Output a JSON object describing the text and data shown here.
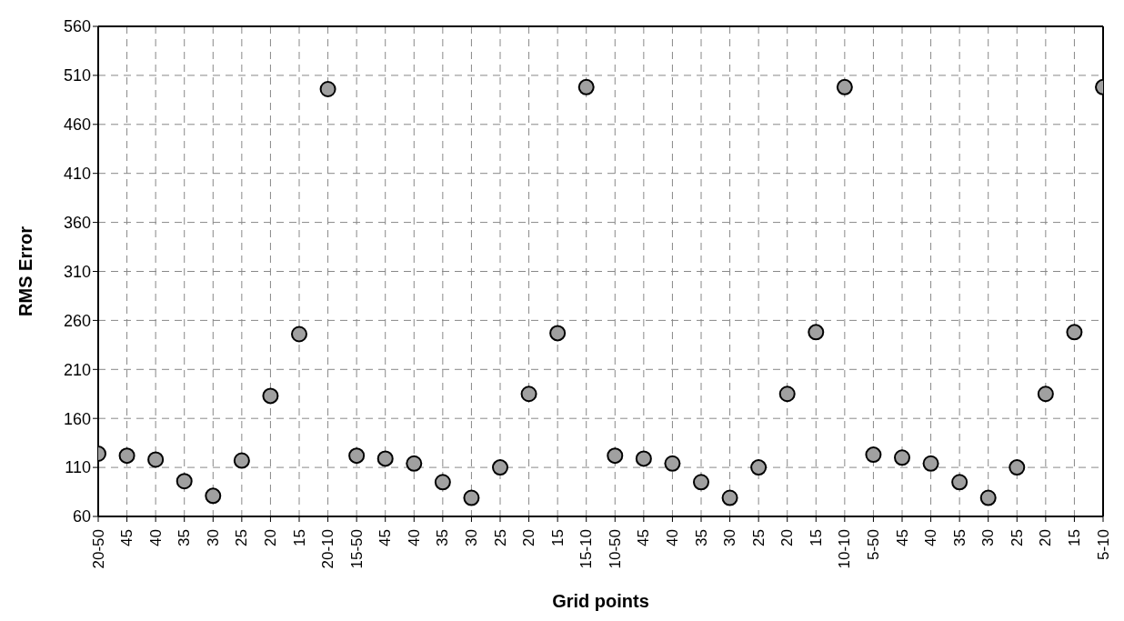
{
  "chart_data": {
    "type": "scatter",
    "xlabel": "Grid points",
    "ylabel": "RMS Error",
    "categories": [
      "20-50",
      "45",
      "40",
      "35",
      "30",
      "25",
      "20",
      "15",
      "20-10",
      "15-50",
      "45",
      "40",
      "35",
      "30",
      "25",
      "20",
      "15",
      "15-10",
      "10-50",
      "45",
      "40",
      "35",
      "30",
      "25",
      "20",
      "15",
      "10-10",
      "5-50",
      "45",
      "40",
      "35",
      "30",
      "25",
      "20",
      "15",
      "5-10"
    ],
    "series": [
      {
        "color": "#a0a0a0",
        "values": [
          124,
          122,
          118,
          96,
          81,
          117,
          183,
          246,
          496,
          122,
          119,
          114,
          95,
          79,
          110,
          185,
          247,
          498,
          122,
          119,
          114,
          95,
          79,
          110,
          185,
          248,
          498,
          123,
          120,
          114,
          95,
          79,
          110,
          185,
          248,
          498
        ]
      }
    ],
    "ylim": [
      60,
      560
    ],
    "yticks": [
      60,
      110,
      160,
      210,
      260,
      310,
      360,
      410,
      460,
      510,
      560
    ],
    "grid": true,
    "marker": "circle"
  }
}
